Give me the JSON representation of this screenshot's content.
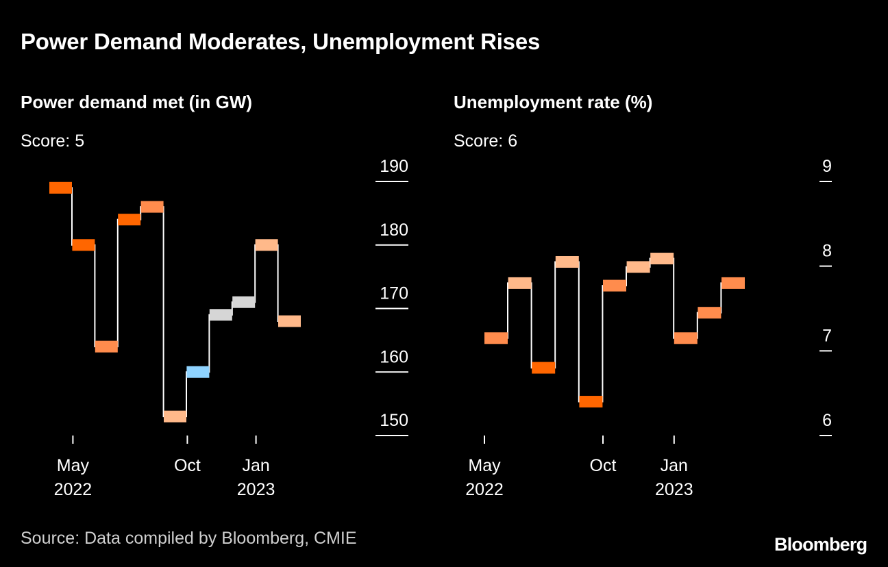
{
  "header": {
    "title": "Power Demand Moderates, Unemployment Rises"
  },
  "chart_data": [
    {
      "type": "step",
      "title": "Power demand met (in GW)",
      "score_label": "Score: 5",
      "x_months_index_start": 0,
      "months": [
        "2022-04",
        "2022-05",
        "2022-06",
        "2022-07",
        "2022-08",
        "2022-09",
        "2022-10",
        "2022-11",
        "2022-12",
        "2023-01",
        "2023-02",
        "2023-03"
      ],
      "values": [
        189,
        180,
        164,
        184,
        186,
        153,
        160,
        169,
        171,
        180,
        168
      ],
      "colors": [
        "#ff6600",
        "#ff6600",
        "#ff8c4d",
        "#ff6600",
        "#ff8c4d",
        "#ffb98a",
        "#8fd3ff",
        "#d6d6d6",
        "#d6d6d6",
        "#ffb98a",
        "#ffb98a"
      ],
      "ylim": [
        150,
        190
      ],
      "yticks": [
        "190",
        "180",
        "170",
        "160",
        "150"
      ],
      "ytick_values": [
        190,
        180,
        170,
        160,
        150
      ],
      "xticks": [
        {
          "month": 1,
          "line1": "May",
          "line2": "2022"
        },
        {
          "month": 6,
          "line1": "Oct",
          "line2": ""
        },
        {
          "month": 9,
          "line1": "Jan",
          "line2": "2023"
        }
      ]
    },
    {
      "type": "step",
      "title": "Unemployment rate (%)",
      "score_label": "Score: 6",
      "months": [
        "2022-05",
        "2022-06",
        "2022-07",
        "2022-08",
        "2022-09",
        "2022-10",
        "2022-11",
        "2022-12",
        "2023-01",
        "2023-02",
        "2023-03"
      ],
      "values": [
        7.15,
        7.8,
        6.8,
        8.05,
        6.4,
        7.77,
        7.99,
        8.09,
        7.15,
        7.45,
        7.8
      ],
      "colors": [
        "#ff8c4d",
        "#ffb98a",
        "#ff6600",
        "#ffb98a",
        "#ff6600",
        "#ff8c4d",
        "#ffb98a",
        "#ffb98a",
        "#ff8c4d",
        "#ff8c4d",
        "#ff8c4d"
      ],
      "ylim": [
        6,
        9
      ],
      "yticks": [
        "9",
        "8",
        "7",
        "6"
      ],
      "ytick_values": [
        9,
        8,
        7,
        6
      ],
      "xticks": [
        {
          "month": 0,
          "line1": "May",
          "line2": "2022"
        },
        {
          "month": 5,
          "line1": "Oct",
          "line2": ""
        },
        {
          "month": 8,
          "line1": "Jan",
          "line2": "2023"
        }
      ]
    }
  ],
  "footer": {
    "source": "Source: Data compiled by Bloomberg, CMIE",
    "logo": "Bloomberg"
  }
}
